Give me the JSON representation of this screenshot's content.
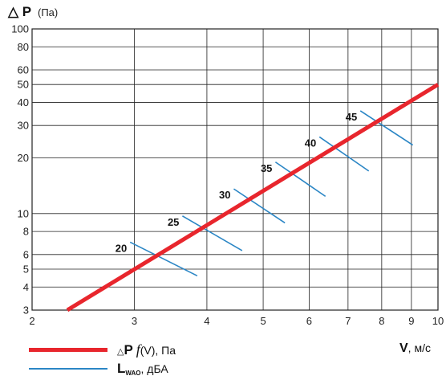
{
  "chart_data": {
    "type": "line",
    "title": "",
    "xlabel": {
      "symbol": "V",
      "unit": ", м/с"
    },
    "ylabel": {
      "symbol": "△ P",
      "unit": "(Па)"
    },
    "x_scale": "log",
    "y_scale": "log",
    "xlim": [
      2,
      10
    ],
    "ylim": [
      3,
      100
    ],
    "grid": true,
    "x_ticks": [
      2,
      3,
      4,
      5,
      6,
      7,
      8,
      9,
      10
    ],
    "y_ticks": [
      3,
      4,
      5,
      6,
      8,
      10,
      20,
      30,
      40,
      50,
      60,
      80,
      100
    ],
    "series": [
      {
        "name": "△P f(V), Па",
        "color": "#e8262d",
        "x": [
          2.3,
          10
        ],
        "y": [
          3,
          50
        ]
      }
    ],
    "noise_levels": {
      "name": "LWAO, дБА",
      "color": "#2b86c5",
      "labels": [
        "20",
        "25",
        "30",
        "35",
        "40",
        "45"
      ],
      "segments": [
        {
          "label": "20",
          "x": [
            2.95,
            3.85
          ],
          "y": [
            7.0,
            4.6
          ]
        },
        {
          "label": "25",
          "x": [
            3.63,
            4.6
          ],
          "y": [
            9.7,
            6.3
          ]
        },
        {
          "label": "30",
          "x": [
            4.45,
            5.45
          ],
          "y": [
            13.6,
            8.9
          ]
        },
        {
          "label": "35",
          "x": [
            5.25,
            6.4
          ],
          "y": [
            19.0,
            12.4
          ]
        },
        {
          "label": "40",
          "x": [
            6.25,
            7.6
          ],
          "y": [
            26.0,
            17.0
          ]
        },
        {
          "label": "45",
          "x": [
            7.35,
            9.05
          ],
          "y": [
            36.0,
            23.5
          ]
        }
      ]
    }
  },
  "legend": {
    "dp": {
      "symbol": "P",
      "func": "f",
      "arg": "(V), Па"
    },
    "lw": {
      "symbol": "L",
      "sub": "WAO",
      "rest": ", дБА"
    }
  }
}
